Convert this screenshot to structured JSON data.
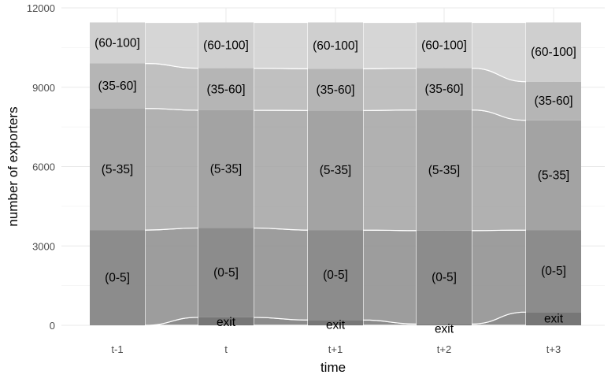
{
  "chart_data": {
    "type": "alluvial",
    "xlabel": "time",
    "ylabel": "number of exporters",
    "ylim": [
      0,
      12000
    ],
    "y_ticks": [
      "0",
      "3000",
      "6000",
      "9000",
      "12000"
    ],
    "grid": true,
    "categories": [
      "t-1",
      "t",
      "t+1",
      "t+2",
      "t+3"
    ],
    "strata": [
      {
        "label": "exit",
        "color": "#777777",
        "values": [
          0,
          300,
          200,
          50,
          500
        ]
      },
      {
        "label": "(0-5]",
        "color": "#8c8c8c",
        "values": [
          3600,
          3380,
          3400,
          3530,
          3100
        ]
      },
      {
        "label": "(5-35]",
        "color": "#a3a3a3",
        "values": [
          4600,
          4450,
          4520,
          4560,
          4150
        ]
      },
      {
        "label": "(35-60]",
        "color": "#b5b5b5",
        "values": [
          1700,
          1590,
          1580,
          1580,
          1460
        ]
      },
      {
        "label": "(60-100]",
        "color": "#cfcfcf",
        "values": [
          1550,
          1730,
          1750,
          1730,
          2240
        ]
      }
    ],
    "flows_between_bars": [
      {
        "from": "t-1",
        "to": "t"
      },
      {
        "from": "t",
        "to": "t+1"
      },
      {
        "from": "t+1",
        "to": "t+2"
      },
      {
        "from": "t+2",
        "to": "t+3"
      }
    ]
  }
}
